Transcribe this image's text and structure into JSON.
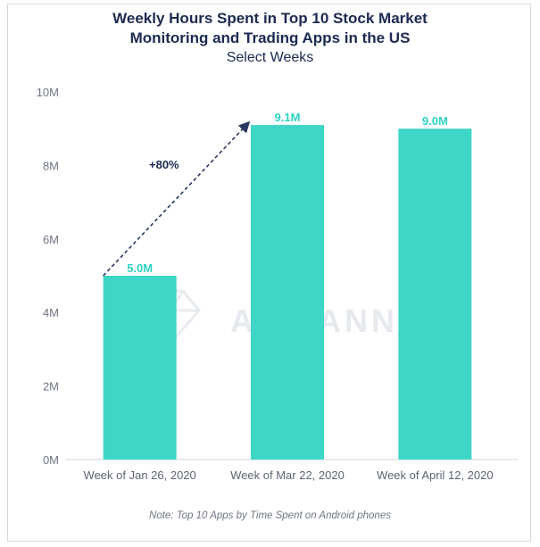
{
  "chart": {
    "title_line1": "Weekly Hours Spent in Top 10 Stock Market",
    "title_line2": "Monitoring and Trading Apps in the US",
    "subtitle": "Select Weeks",
    "note": "Note: Top 10 Apps by Time Spent on Android phones",
    "watermark": "APP ANNIE",
    "growth_annotation": "+80%"
  },
  "colors": {
    "bar": "#3ed6c6",
    "label": "#2ed3c4",
    "title": "#1b2a52",
    "arrow": "#2a3760"
  },
  "chart_data": {
    "type": "bar",
    "title": "Weekly Hours Spent in Top 10 Stock Market Monitoring and Trading Apps in the US",
    "subtitle": "Select Weeks",
    "categories": [
      "Week of Jan 26, 2020",
      "Week of Mar 22, 2020",
      "Week of April 12, 2020"
    ],
    "values": [
      5.0,
      9.1,
      9.0
    ],
    "value_labels": [
      "5.0M",
      "9.1M",
      "9.0M"
    ],
    "y_ticks": [
      "0M",
      "2M",
      "4M",
      "6M",
      "8M",
      "10M"
    ],
    "ylim": [
      0,
      10
    ],
    "unit": "M",
    "grid": false,
    "annotation": "+80%"
  }
}
